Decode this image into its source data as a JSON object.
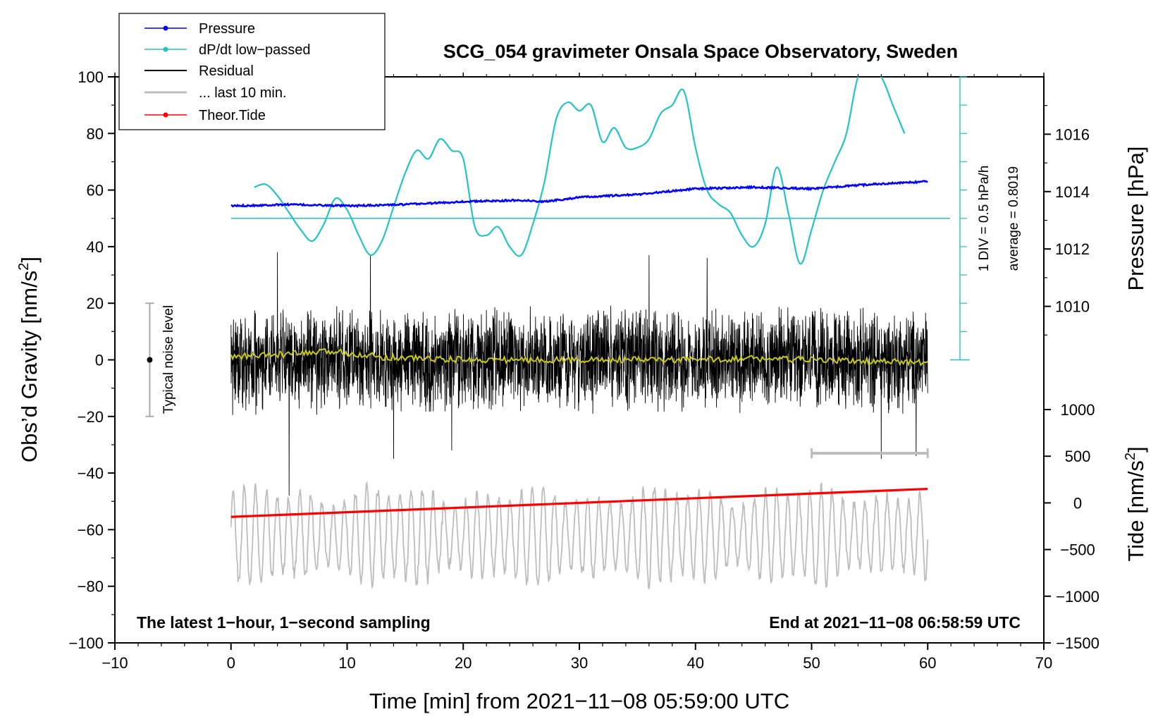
{
  "chart_data": {
    "type": "line",
    "title": "SCG_054 gravimeter Onsala Space Observatory, Sweden",
    "xlabel": "Time [min] from 2021−11−08 05:59:00 UTC",
    "ylabel_left": "Obs’d Gravity [nm/s",
    "ylabel_left_sup": "2",
    "ylabel_left_close": "]",
    "ylabel_right_pressure": "Pressure [hPa]",
    "ylabel_right_tide": "Tide [nm/s",
    "ylabel_right_tide_sup": "2",
    "ylabel_right_tide_close": "]",
    "xlim": [
      -10,
      70
    ],
    "ylim": [
      -100,
      100
    ],
    "pressure_lim": [
      1008,
      1018
    ],
    "tide_lim": [
      -1500,
      1000
    ],
    "x_ticks": [
      "−10",
      "0",
      "10",
      "20",
      "30",
      "40",
      "50",
      "60",
      "70"
    ],
    "y_ticks": [
      "−100",
      "−80",
      "−60",
      "−40",
      "−20",
      "0",
      "20",
      "40",
      "60",
      "80",
      "100"
    ],
    "pressure_ticks": [
      "1010",
      "1012",
      "1014",
      "1016"
    ],
    "tide_ticks": [
      "−1500",
      "−1000",
      "−500",
      "0",
      "500",
      "1000"
    ],
    "legend": [
      {
        "label": "Pressure",
        "color": "#0000ff"
      },
      {
        "label": "dP/dt low−passed",
        "color": "#22c4c4"
      },
      {
        "label": "Residual",
        "color": "#000000"
      },
      {
        "label": "... last 10 min.",
        "color": "#bdbdbd"
      },
      {
        "label": "Theor.Tide",
        "color": "#ff0000"
      }
    ],
    "annotations": {
      "left_note": "The latest 1−hour, 1−second sampling",
      "right_note": "End at 2021−11−08 06:58:59 UTC",
      "noise_label": "Typical noise level",
      "div_label": "1 DIV = 0.5 hPa/h",
      "avg_label": "average = 0.8019"
    },
    "noise_bar": {
      "x": -7,
      "low": -20,
      "high": 20,
      "center": 0
    },
    "last10_bar": {
      "x_start": 50,
      "x_end": 60,
      "y": -33
    },
    "pressure_series": {
      "name": "Pressure",
      "x": [
        0,
        5,
        10,
        15,
        20,
        25,
        27,
        30,
        35,
        40,
        45,
        50,
        55,
        60
      ],
      "values": [
        1013.5,
        1013.55,
        1013.5,
        1013.55,
        1013.65,
        1013.7,
        1013.65,
        1013.8,
        1013.9,
        1014.1,
        1014.15,
        1014.1,
        1014.25,
        1014.35
      ]
    },
    "dpdt_series": {
      "name": "dP/dt low−passed",
      "x": [
        2,
        3,
        4,
        5,
        6,
        7,
        8,
        9,
        10,
        11,
        12,
        13,
        14,
        15,
        16,
        17,
        18,
        19,
        20,
        21,
        22,
        23,
        24,
        25,
        26,
        27,
        28,
        29,
        30,
        31,
        32,
        33,
        34,
        35,
        36,
        37,
        38,
        39,
        40,
        41,
        42,
        43,
        44,
        45,
        46,
        47,
        48,
        49,
        50,
        51,
        52,
        53,
        54,
        55,
        56,
        57,
        58
      ],
      "values": [
        61,
        62,
        58,
        52,
        46,
        42,
        48,
        57,
        53,
        44,
        37,
        42,
        54,
        66,
        74,
        71,
        78,
        74,
        71,
        47,
        44,
        47,
        40,
        37,
        48,
        63,
        85,
        91,
        88,
        90,
        77,
        82,
        75,
        75,
        78,
        87,
        90,
        95,
        75,
        60,
        55,
        52,
        44,
        40,
        48,
        68,
        52,
        34,
        46,
        60,
        70,
        80,
        100,
        108,
        100,
        90,
        80
      ]
    },
    "dpdt_zero_line": 50,
    "residual_series": {
      "name": "Residual",
      "x_range": [
        0,
        60
      ],
      "amplitude": 20,
      "spikes": [
        [
          4,
          38
        ],
        [
          5,
          -48
        ],
        [
          12,
          37
        ],
        [
          14,
          -35
        ],
        [
          19,
          -32
        ],
        [
          36,
          37
        ],
        [
          41,
          36
        ],
        [
          56,
          -35
        ],
        [
          59,
          -34
        ]
      ]
    },
    "residual_smooth": {
      "name": "Residual low−passed",
      "color": "#c8c818",
      "x": [
        0,
        5,
        9,
        13,
        20,
        30,
        40,
        45,
        50,
        55,
        60
      ],
      "values": [
        1,
        2,
        3,
        1,
        0,
        0,
        0,
        0.5,
        0,
        -0.5,
        -1
      ]
    },
    "last10_series": {
      "name": "... last 10 min.",
      "x_range": [
        0,
        60
      ],
      "center": -62,
      "amplitude": 15
    },
    "tide_series": {
      "name": "Theor.Tide",
      "x": [
        0,
        60
      ],
      "values": [
        -150,
        150
      ]
    },
    "colors": {
      "pressure": "#0000ff",
      "dpdt": "#22c4c4",
      "residual": "#000000",
      "last10": "#bdbdbd",
      "tide": "#ff0000",
      "smooth": "#c8c818"
    }
  }
}
